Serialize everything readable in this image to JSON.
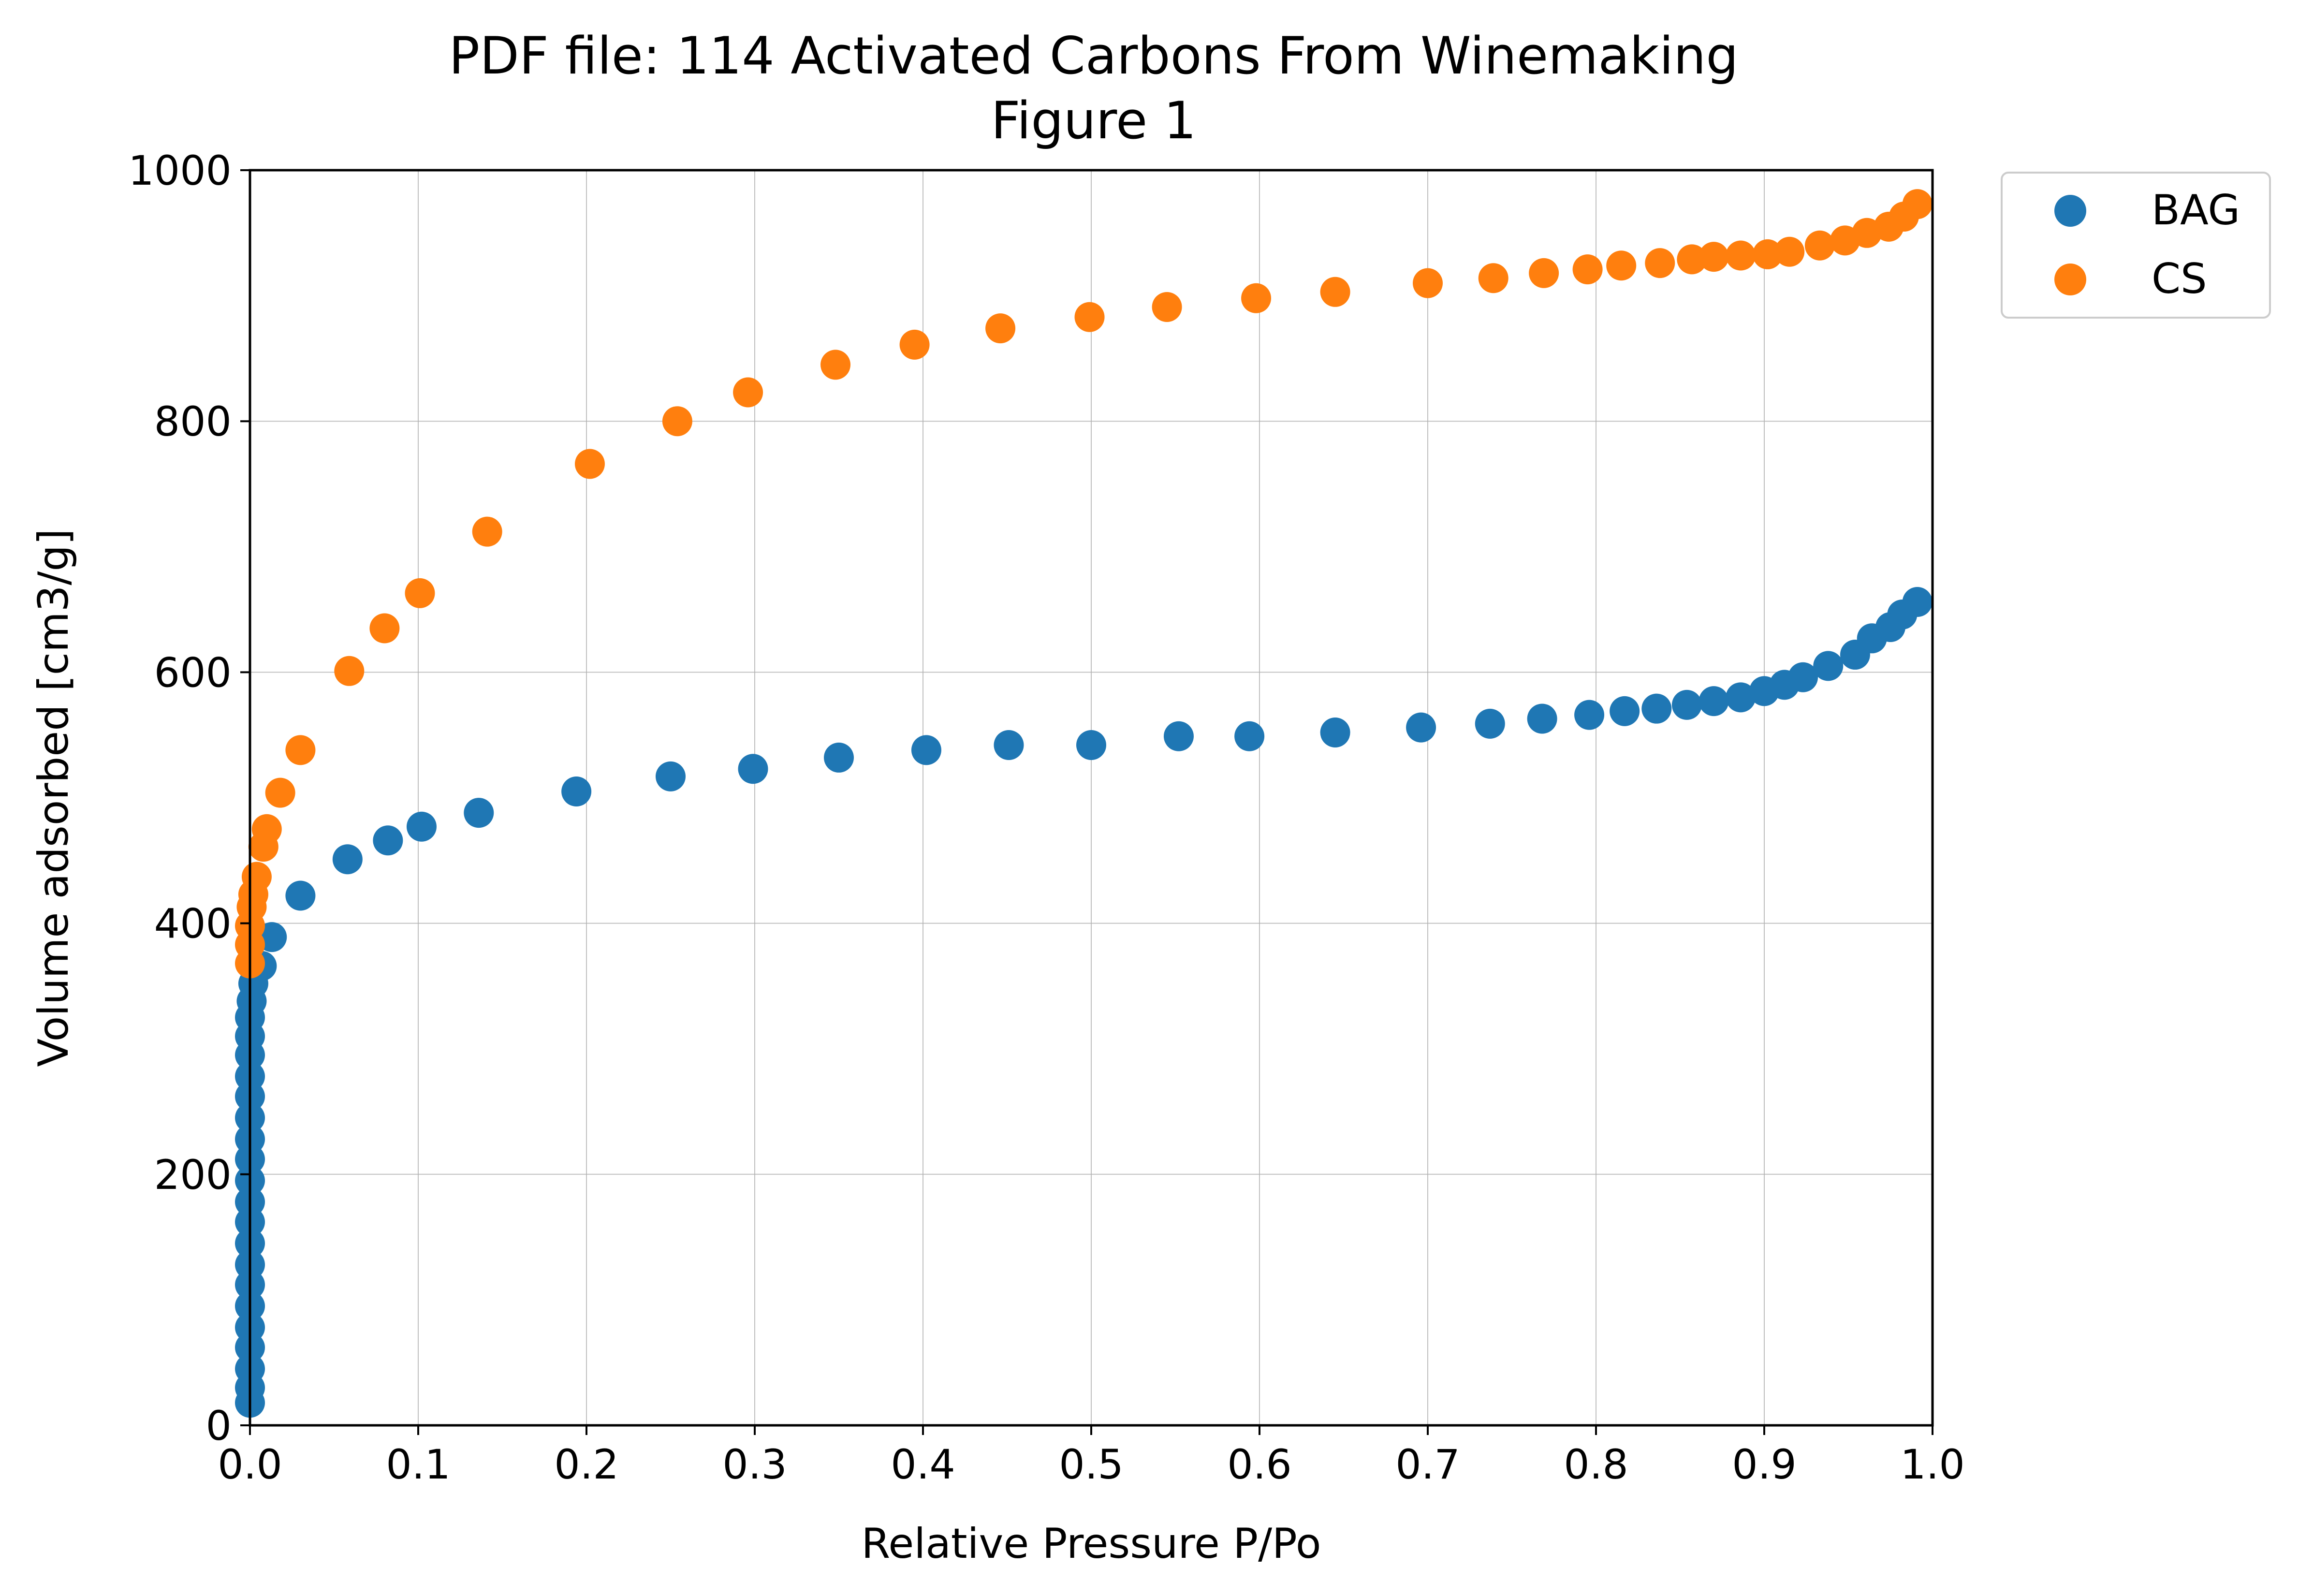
{
  "chart_data": {
    "type": "scatter",
    "title": "PDF file: 114 Activated Carbons From Winemaking",
    "subtitle": "Figure 1",
    "xlabel": "Relative Pressure P/Po",
    "ylabel": "Volume adsorbed [cm3/g]",
    "xlim": [
      0.0,
      1.0
    ],
    "ylim": [
      0,
      1000
    ],
    "xticks": [
      "0.0",
      "0.1",
      "0.2",
      "0.3",
      "0.4",
      "0.5",
      "0.6",
      "0.7",
      "0.8",
      "0.9",
      "1.0"
    ],
    "yticks": [
      "0",
      "200",
      "400",
      "600",
      "800",
      "1000"
    ],
    "grid": true,
    "legend_position": "outside-top-right",
    "series": [
      {
        "name": "BAG",
        "color": "#1f77b4",
        "points": [
          [
            0.0,
            18
          ],
          [
            0.0,
            30
          ],
          [
            0.0,
            45
          ],
          [
            0.0,
            62
          ],
          [
            0.0,
            78
          ],
          [
            0.0,
            95
          ],
          [
            0.0,
            112
          ],
          [
            0.0,
            128
          ],
          [
            0.0,
            145
          ],
          [
            0.0,
            162
          ],
          [
            0.0,
            178
          ],
          [
            0.0,
            195
          ],
          [
            0.0,
            212
          ],
          [
            0.0,
            228
          ],
          [
            0.0,
            245
          ],
          [
            0.0,
            262
          ],
          [
            0.0,
            278
          ],
          [
            0.0,
            295
          ],
          [
            0.0,
            310
          ],
          [
            0.0,
            325
          ],
          [
            0.001,
            338
          ],
          [
            0.002,
            352
          ],
          [
            0.007,
            366
          ],
          [
            0.013,
            389
          ],
          [
            0.03,
            422
          ],
          [
            0.058,
            451
          ],
          [
            0.082,
            466
          ],
          [
            0.102,
            477
          ],
          [
            0.136,
            488
          ],
          [
            0.194,
            505
          ],
          [
            0.25,
            517
          ],
          [
            0.299,
            523
          ],
          [
            0.35,
            532
          ],
          [
            0.402,
            538
          ],
          [
            0.451,
            542
          ],
          [
            0.5,
            542
          ],
          [
            0.552,
            549
          ],
          [
            0.594,
            549
          ],
          [
            0.645,
            552
          ],
          [
            0.696,
            556
          ],
          [
            0.737,
            559
          ],
          [
            0.768,
            563
          ],
          [
            0.796,
            566
          ],
          [
            0.817,
            569
          ],
          [
            0.836,
            571
          ],
          [
            0.854,
            574
          ],
          [
            0.87,
            577
          ],
          [
            0.886,
            580
          ],
          [
            0.9,
            585
          ],
          [
            0.912,
            590
          ],
          [
            0.923,
            596
          ],
          [
            0.938,
            605
          ],
          [
            0.954,
            614
          ],
          [
            0.964,
            627
          ],
          [
            0.975,
            636
          ],
          [
            0.982,
            646
          ],
          [
            0.991,
            656
          ]
        ]
      },
      {
        "name": "CS",
        "color": "#ff7f0e",
        "points": [
          [
            0.0,
            368
          ],
          [
            0.0,
            383
          ],
          [
            0.0,
            398
          ],
          [
            0.001,
            413
          ],
          [
            0.002,
            423
          ],
          [
            0.004,
            437
          ],
          [
            0.008,
            461
          ],
          [
            0.01,
            475
          ],
          [
            0.018,
            504
          ],
          [
            0.03,
            538
          ],
          [
            0.059,
            601
          ],
          [
            0.08,
            635
          ],
          [
            0.101,
            663
          ],
          [
            0.141,
            712
          ],
          [
            0.202,
            766
          ],
          [
            0.254,
            800
          ],
          [
            0.296,
            823
          ],
          [
            0.348,
            845
          ],
          [
            0.395,
            861
          ],
          [
            0.446,
            874
          ],
          [
            0.499,
            883
          ],
          [
            0.545,
            891
          ],
          [
            0.598,
            898
          ],
          [
            0.645,
            903
          ],
          [
            0.7,
            910
          ],
          [
            0.739,
            914
          ],
          [
            0.769,
            918
          ],
          [
            0.795,
            921
          ],
          [
            0.815,
            924
          ],
          [
            0.838,
            926
          ],
          [
            0.857,
            929
          ],
          [
            0.87,
            931
          ],
          [
            0.886,
            932
          ],
          [
            0.902,
            933
          ],
          [
            0.915,
            935
          ],
          [
            0.933,
            940
          ],
          [
            0.948,
            944
          ],
          [
            0.961,
            950
          ],
          [
            0.974,
            955
          ],
          [
            0.983,
            963
          ],
          [
            0.991,
            973
          ]
        ]
      }
    ]
  }
}
